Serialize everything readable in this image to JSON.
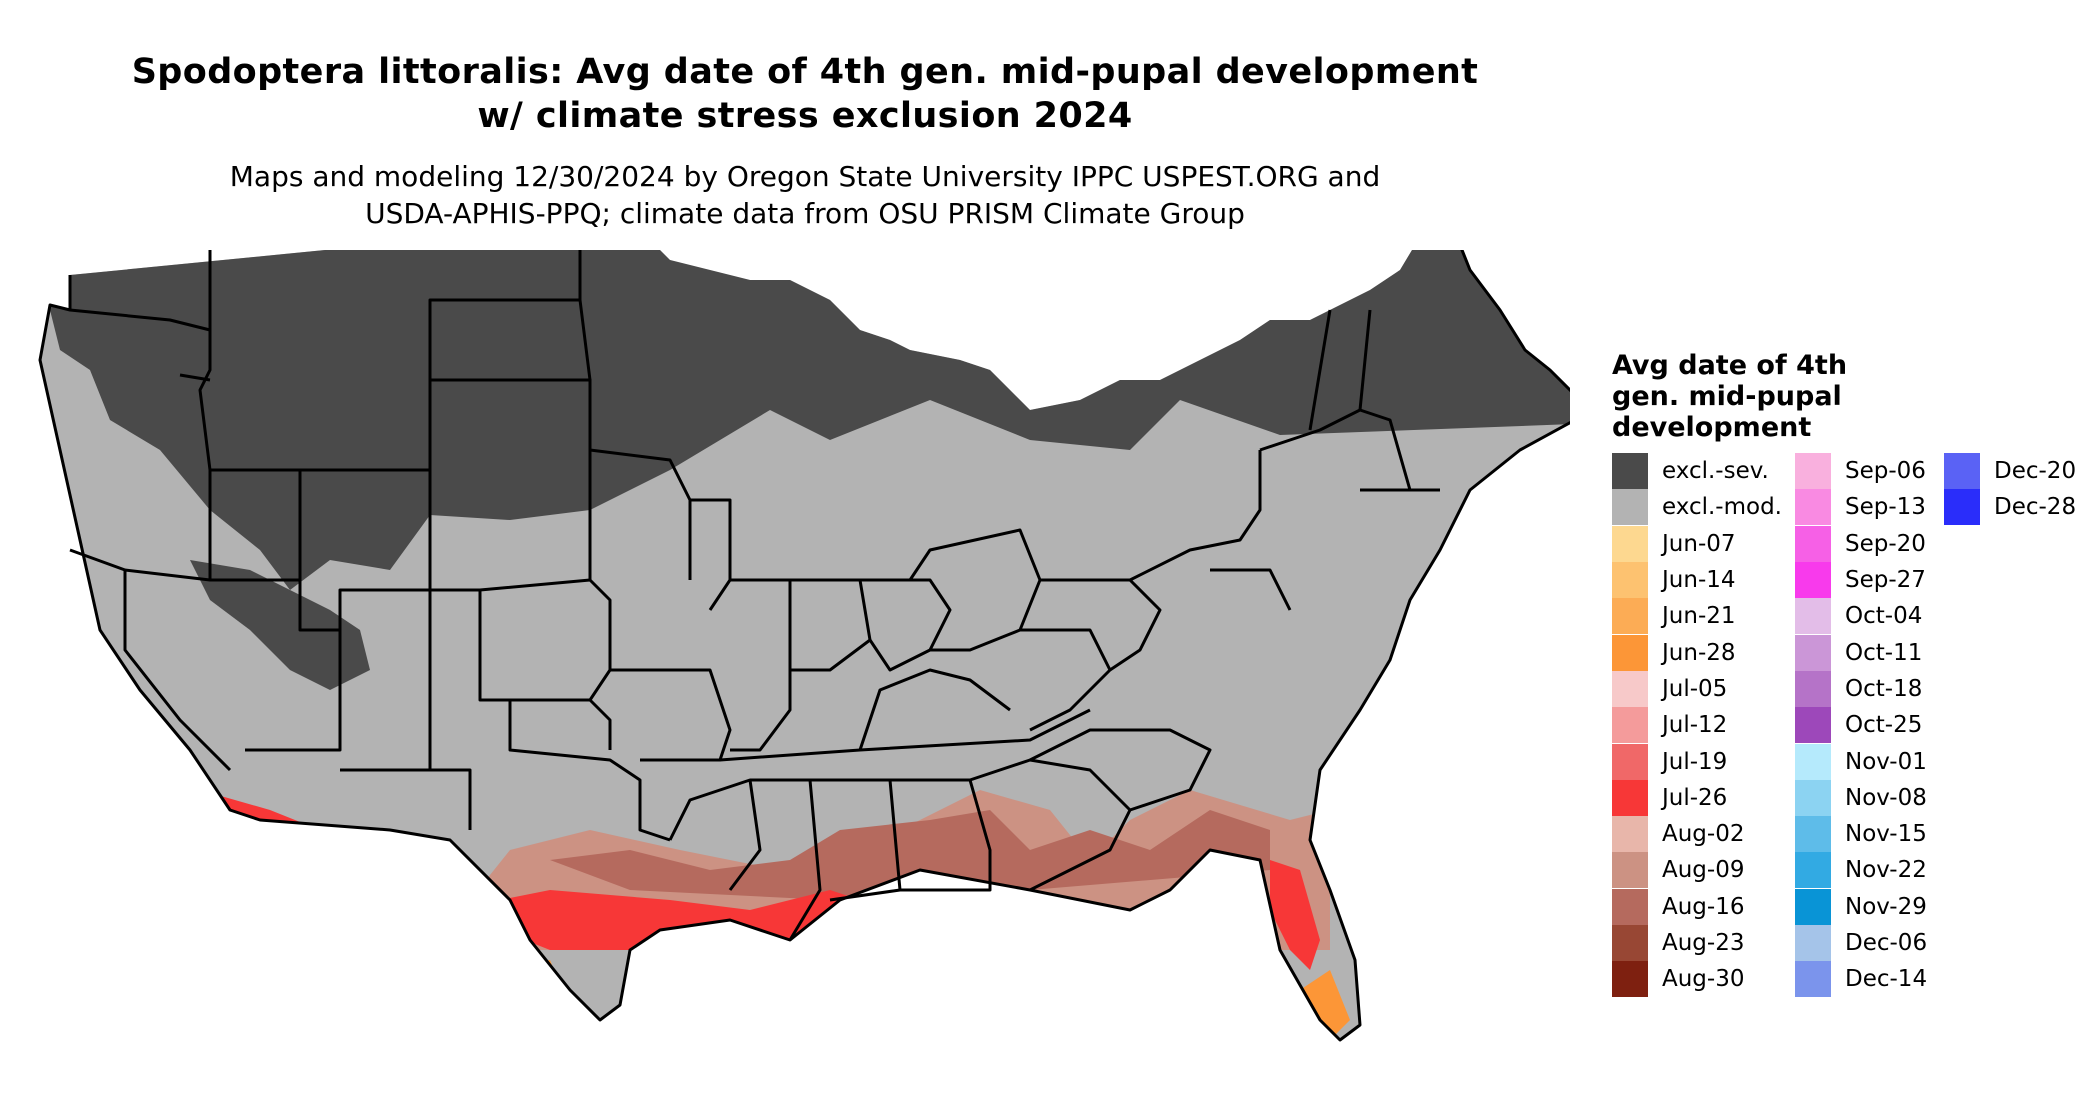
{
  "title": {
    "line1": "Spodoptera littoralis: Avg date of 4th gen. mid-pupal development",
    "line2": "w/ climate stress exclusion 2024"
  },
  "subtitle": {
    "line1": "Maps and modeling 12/30/2024 by Oregon State University IPPC USPEST.ORG and",
    "line2": "USDA-APHIS-PPQ; climate data from OSU PRISM Climate Group"
  },
  "map": {
    "region": "Contiguous United States",
    "colors": {
      "excl_sev": "#4a4a4a",
      "excl_mod": "#b3b3b3",
      "state_border": "#000000"
    }
  },
  "legend": {
    "title_lines": [
      "Avg date of 4th",
      "gen. mid-pupal",
      "development"
    ],
    "columns": [
      [
        {
          "label": "excl.-sev.",
          "color": "#4a4a4a"
        },
        {
          "label": "excl.-mod.",
          "color": "#b3b3b3"
        },
        {
          "label": "Jun-07",
          "color": "#fdd890"
        },
        {
          "label": "Jun-14",
          "color": "#fdc270"
        },
        {
          "label": "Jun-21",
          "color": "#fcac55"
        },
        {
          "label": "Jun-28",
          "color": "#fc9637"
        },
        {
          "label": "Jul-05",
          "color": "#f7c9c9"
        },
        {
          "label": "Jul-12",
          "color": "#f49b9b"
        },
        {
          "label": "Jul-19",
          "color": "#f06868"
        },
        {
          "label": "Jul-26",
          "color": "#f73737"
        },
        {
          "label": "Aug-02",
          "color": "#e8b6aa"
        },
        {
          "label": "Aug-09",
          "color": "#cc9283"
        },
        {
          "label": "Aug-16",
          "color": "#b56a5e"
        },
        {
          "label": "Aug-23",
          "color": "#984734"
        },
        {
          "label": "Aug-30",
          "color": "#7e2010"
        }
      ],
      [
        {
          "label": "Sep-06",
          "color": "#f9b0de"
        },
        {
          "label": "Sep-13",
          "color": "#f98ae2"
        },
        {
          "label": "Sep-20",
          "color": "#f660e6"
        },
        {
          "label": "Sep-27",
          "color": "#f83aec"
        },
        {
          "label": "Oct-04",
          "color": "#e3bde8"
        },
        {
          "label": "Oct-11",
          "color": "#cb96d7"
        },
        {
          "label": "Oct-18",
          "color": "#b573c8"
        },
        {
          "label": "Oct-25",
          "color": "#9d48ba"
        },
        {
          "label": "Nov-01",
          "color": "#b5eafc"
        },
        {
          "label": "Nov-08",
          "color": "#8cd3f2"
        },
        {
          "label": "Nov-15",
          "color": "#5ebce9"
        },
        {
          "label": "Nov-22",
          "color": "#32aae3"
        },
        {
          "label": "Nov-29",
          "color": "#0994d6"
        },
        {
          "label": "Dec-06",
          "color": "#a5c4e9"
        },
        {
          "label": "Dec-14",
          "color": "#7b94ec"
        }
      ],
      [
        {
          "label": "Dec-20",
          "color": "#5a62f5"
        },
        {
          "label": "Dec-28",
          "color": "#2a2dfa"
        }
      ]
    ]
  }
}
